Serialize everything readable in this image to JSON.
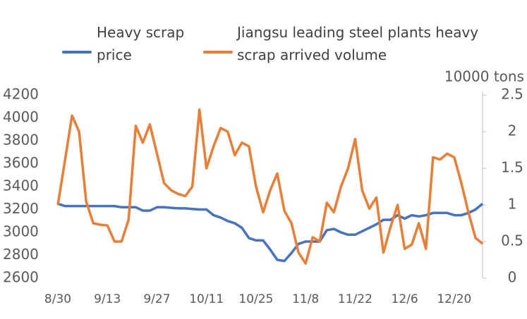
{
  "chart_data": {
    "type": "line",
    "y2_label": "10000 tons",
    "categories": [
      "8/30",
      null,
      null,
      null,
      null,
      null,
      null,
      "9/13",
      null,
      null,
      null,
      null,
      null,
      null,
      "9/27",
      null,
      null,
      null,
      null,
      null,
      null,
      "10/11",
      null,
      null,
      null,
      null,
      null,
      null,
      "10/25",
      null,
      null,
      null,
      null,
      null,
      null,
      "11/8",
      null,
      null,
      null,
      null,
      null,
      null,
      "11/22",
      null,
      null,
      null,
      null,
      null,
      null,
      "12/6",
      null,
      null,
      null,
      null,
      null,
      null,
      "12/20",
      null,
      null,
      null,
      null
    ],
    "series": [
      {
        "name": "Heavy scrap price",
        "color": "#4472c4",
        "axis": "y",
        "values": [
          3250,
          3230,
          3230,
          3230,
          3230,
          3230,
          3230,
          3230,
          3230,
          3220,
          3220,
          3220,
          3190,
          3190,
          3220,
          3220,
          3215,
          3210,
          3210,
          3205,
          3200,
          3200,
          3150,
          3130,
          3100,
          3080,
          3040,
          2950,
          2930,
          2930,
          2850,
          2760,
          2750,
          2820,
          2900,
          2920,
          2920,
          2920,
          3020,
          3030,
          3000,
          2980,
          2980,
          3010,
          3040,
          3070,
          3110,
          3110,
          3150,
          3120,
          3150,
          3140,
          3150,
          3170,
          3170,
          3170,
          3150,
          3150,
          3170,
          3200,
          3250
        ]
      },
      {
        "name": "Jiangsu leading steel plants heavy scrap arrived volume",
        "color": "#ed7d31",
        "axis": "y2",
        "values": [
          1.0,
          1.6,
          2.22,
          2.0,
          1.05,
          0.75,
          0.73,
          0.72,
          0.5,
          0.5,
          0.8,
          2.08,
          1.85,
          2.1,
          1.7,
          1.3,
          1.2,
          1.15,
          1.12,
          1.25,
          2.3,
          1.5,
          1.8,
          2.05,
          2.0,
          1.68,
          1.85,
          1.8,
          1.25,
          0.9,
          1.2,
          1.43,
          0.92,
          0.75,
          0.35,
          0.2,
          0.56,
          0.5,
          1.03,
          0.9,
          1.25,
          1.5,
          1.9,
          1.2,
          0.95,
          1.1,
          0.35,
          0.7,
          1.0,
          0.4,
          0.46,
          0.75,
          0.4,
          1.65,
          1.62,
          1.7,
          1.65,
          1.3,
          0.9,
          0.55,
          0.47
        ]
      }
    ],
    "ylim": [
      2600,
      4200
    ],
    "yticks": [
      2600,
      2800,
      3000,
      3200,
      3400,
      3600,
      3800,
      4000,
      4200
    ],
    "y2lim": [
      0,
      2.5
    ],
    "y2ticks": [
      0,
      0.5,
      1,
      1.5,
      2,
      2.5
    ],
    "grid": false
  }
}
